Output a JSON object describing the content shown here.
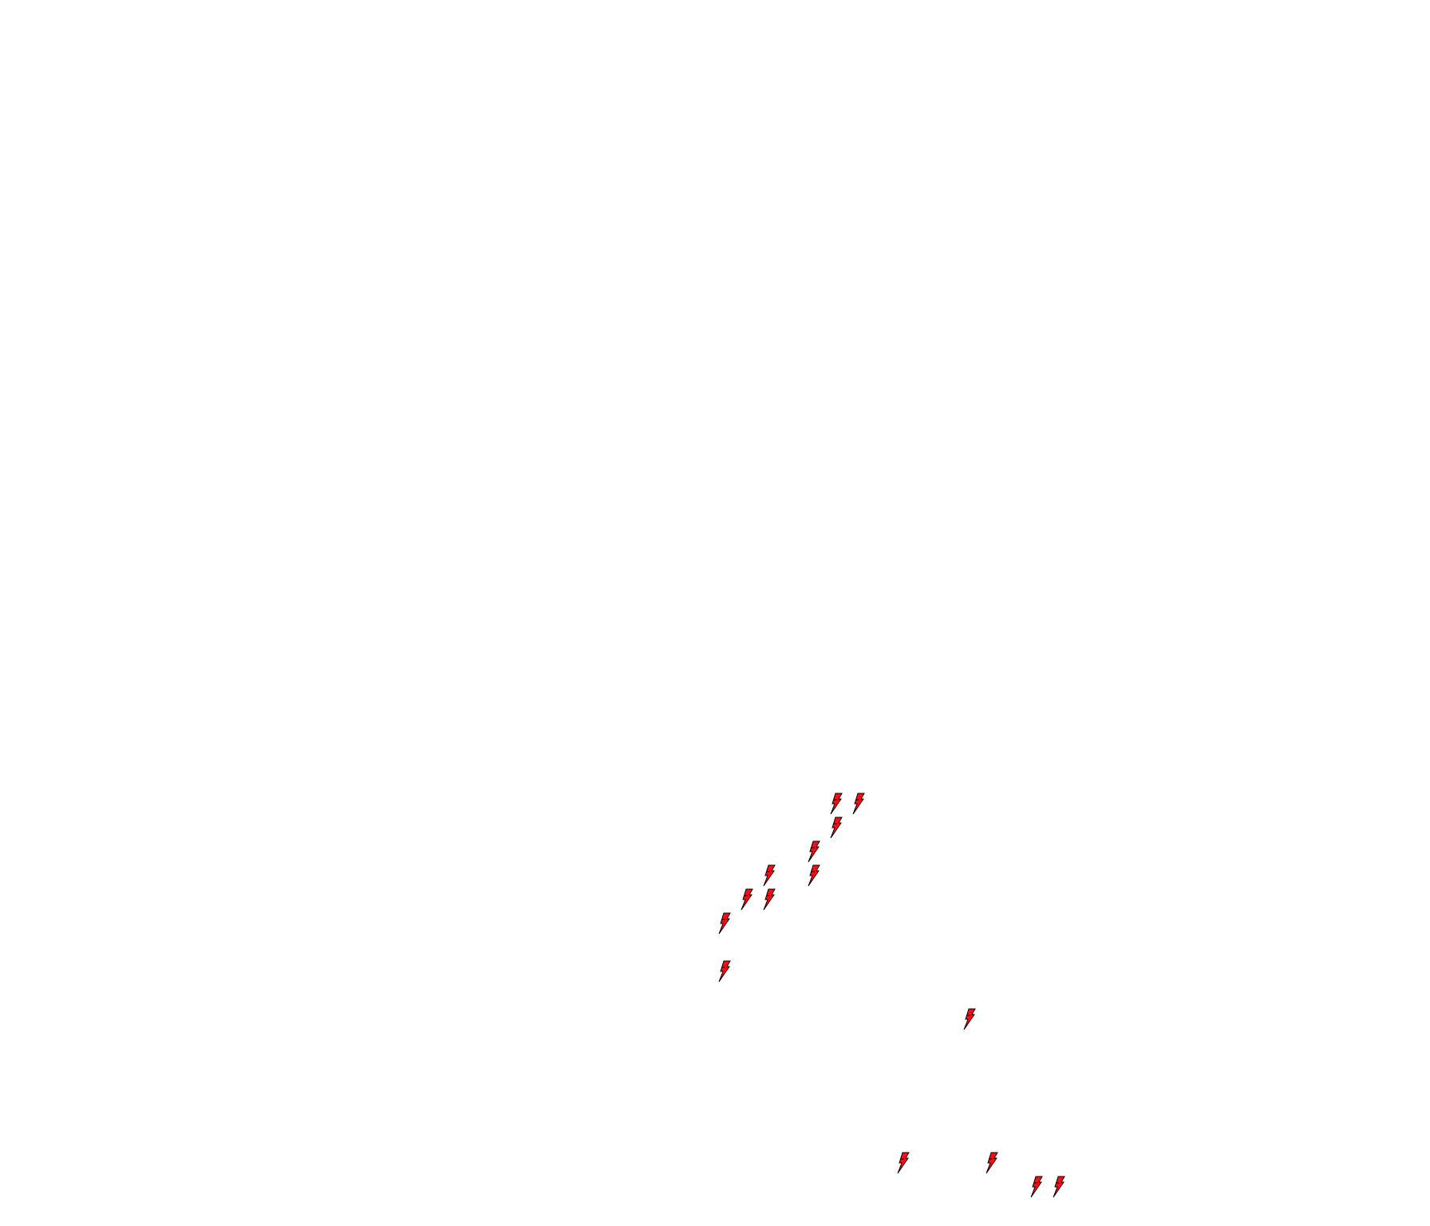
{
  "map": {
    "marker_icon": "lightning-bolt-icon",
    "marker_fill": "#ff0a14",
    "marker_stroke": "#000000",
    "marker_count": 15
  }
}
